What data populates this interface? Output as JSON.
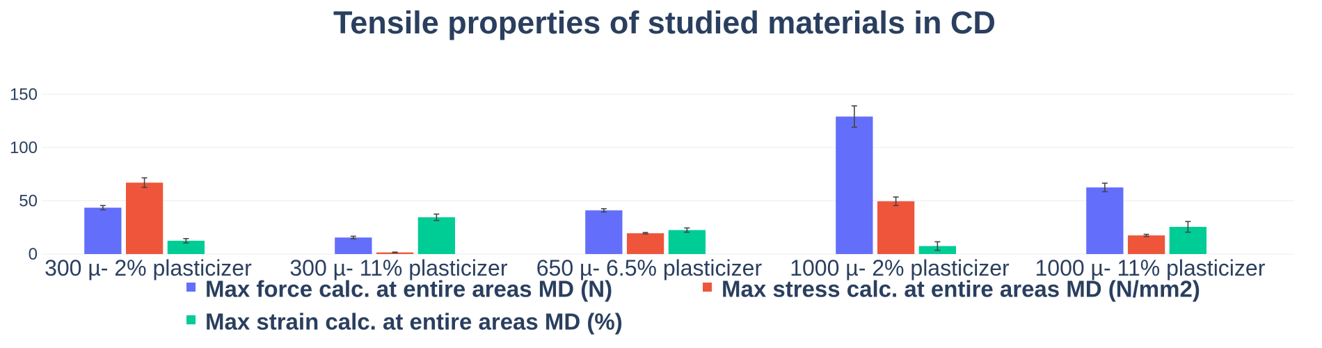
{
  "chart_data": {
    "type": "bar",
    "title": "Tensile properties of studied materials in CD",
    "xlabel": "",
    "ylabel": "",
    "ylim": [
      0,
      160
    ],
    "yticks": [
      0,
      50,
      100,
      150
    ],
    "grid": true,
    "legend_position": "bottom",
    "categories": [
      "300 µ- 2% plasticizer",
      "300 µ- 11% plasticizer",
      "650 µ- 6.5% plasticizer",
      "1000 µ- 2% plasticizer",
      "1000 µ- 11% plasticizer"
    ],
    "series": [
      {
        "name": "Max force calc. at entire areas MD (N)",
        "color": "#636efa",
        "values": [
          43.5,
          15.5,
          41,
          129,
          62.5
        ],
        "errors": [
          2,
          1.2,
          1.5,
          10,
          4
        ]
      },
      {
        "name": "Max stress calc. at entire areas MD (N/mm2)",
        "color": "#ef553b",
        "values": [
          67,
          1.5,
          19.5,
          49.5,
          17.5
        ],
        "errors": [
          4.5,
          0.3,
          0.7,
          4,
          1
        ]
      },
      {
        "name": "Max strain calc. at entire areas MD (%)",
        "color": "#00cc96",
        "values": [
          12.5,
          34.5,
          22.5,
          7.5,
          25.5
        ],
        "errors": [
          2,
          3,
          2,
          4,
          5
        ]
      }
    ]
  }
}
